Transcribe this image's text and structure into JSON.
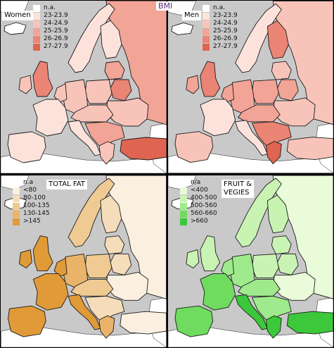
{
  "figure": {
    "title": "BMI"
  },
  "panels": [
    {
      "id": "women",
      "label": "Women",
      "legend": [
        {
          "label": "n.a.",
          "color": "#ffffff"
        },
        {
          "label": "23-23.9",
          "color": "#fde2dc"
        },
        {
          "label": "24-24.9",
          "color": "#f8c4ba"
        },
        {
          "label": "25-25.9",
          "color": "#f2a497"
        },
        {
          "label": "26-26.9",
          "color": "#ea8474"
        },
        {
          "label": "27-27.9",
          "color": "#e06452"
        }
      ]
    },
    {
      "id": "men",
      "label": "Men",
      "legend": [
        {
          "label": "n.a.",
          "color": "#ffffff"
        },
        {
          "label": "23-23.9",
          "color": "#fde2dc"
        },
        {
          "label": "24-24.9",
          "color": "#f8c4ba"
        },
        {
          "label": "25-25.9",
          "color": "#f2a497"
        },
        {
          "label": "26-26.9",
          "color": "#ea8474"
        },
        {
          "label": "27-27.9",
          "color": "#e06452"
        }
      ]
    },
    {
      "id": "total-fat",
      "label": "TOTAL FAT",
      "legend": [
        {
          "label": "n.a",
          "color": "#ffffff"
        },
        {
          "label": "<80",
          "color": "#fbefe0"
        },
        {
          "label": "80-100",
          "color": "#f5ddbb"
        },
        {
          "label": "100-135",
          "color": "#efca92"
        },
        {
          "label": "130-145",
          "color": "#e9b46a"
        },
        {
          "label": ">145",
          "color": "#e09a38"
        }
      ]
    },
    {
      "id": "fruit-vegies",
      "label": "FRUIT &\nVEGIES",
      "legend": [
        {
          "label": "n/a",
          "color": "#ffffff"
        },
        {
          "label": "<400",
          "color": "#e9fbd9"
        },
        {
          "label": "400-500",
          "color": "#c9f3b3"
        },
        {
          "label": "500-560",
          "color": "#9fea8c"
        },
        {
          "label": "560-660",
          "color": "#6fdc5f"
        },
        {
          "label": ">660",
          "color": "#3cc83a"
        }
      ]
    }
  ],
  "colors": {
    "sea": "#c9c9c9",
    "non_data_land": "#ffffff",
    "border": "#1a1a1a"
  },
  "regions": {
    "women": {
      "russia": "#f2a497",
      "scandinavia": "#fde2dc",
      "finland": "#fde2dc",
      "uk": "#ea8474",
      "ireland": "#f8c4ba",
      "iberia": "#fde2dc",
      "france": "#fde2dc",
      "benelux": "#f8c4ba",
      "germany": "#f8c4ba",
      "poland": "#f8c4ba",
      "baltics": "#f2a497",
      "belarus": "#ea8474",
      "ukraine": "#f8c4ba",
      "central": "#f8c4ba",
      "italy": "#fde2dc",
      "balkans": "#f2a497",
      "greece": "#f8c4ba",
      "turkey": "#e06452",
      "iceland": "#ffffff"
    },
    "men": {
      "russia": "#f8c4ba",
      "scandinavia": "#fde2dc",
      "finland": "#ea8474",
      "uk": "#ea8474",
      "ireland": "#f2a497",
      "iberia": "#f8c4ba",
      "france": "#fde2dc",
      "benelux": "#f2a497",
      "germany": "#f2a497",
      "poland": "#f2a497",
      "baltics": "#f8c4ba",
      "belarus": "#f2a497",
      "ukraine": "#f8c4ba",
      "central": "#f2a497",
      "italy": "#fde2dc",
      "balkans": "#ea8474",
      "greece": "#e06452",
      "turkey": "#f8c4ba",
      "iceland": "#ffffff"
    },
    "total-fat": {
      "russia": "#fbefe0",
      "scandinavia": "#efca92",
      "finland": "#f5ddbb",
      "uk": "#e09a38",
      "ireland": "#e09a38",
      "iberia": "#e09a38",
      "france": "#e09a38",
      "benelux": "#e09a38",
      "germany": "#e9b46a",
      "poland": "#efca92",
      "baltics": "#f5ddbb",
      "belarus": "#f5ddbb",
      "ukraine": "#fbefe0",
      "central": "#efca92",
      "italy": "#e09a38",
      "balkans": "#f5ddbb",
      "greece": "#e9b46a",
      "turkey": "#fbefe0",
      "iceland": "#ffffff"
    },
    "fruit-vegies": {
      "russia": "#e9fbd9",
      "scandinavia": "#c9f3b3",
      "finland": "#c9f3b3",
      "uk": "#c9f3b3",
      "ireland": "#c9f3b3",
      "iberia": "#6fdc5f",
      "france": "#6fdc5f",
      "benelux": "#9fea8c",
      "germany": "#9fea8c",
      "poland": "#c9f3b3",
      "baltics": "#c9f3b3",
      "belarus": "#c9f3b3",
      "ukraine": "#e9fbd9",
      "central": "#9fea8c",
      "italy": "#3cc83a",
      "balkans": "#9fea8c",
      "greece": "#3cc83a",
      "turkey": "#3cc83a",
      "iceland": "#ffffff"
    }
  }
}
